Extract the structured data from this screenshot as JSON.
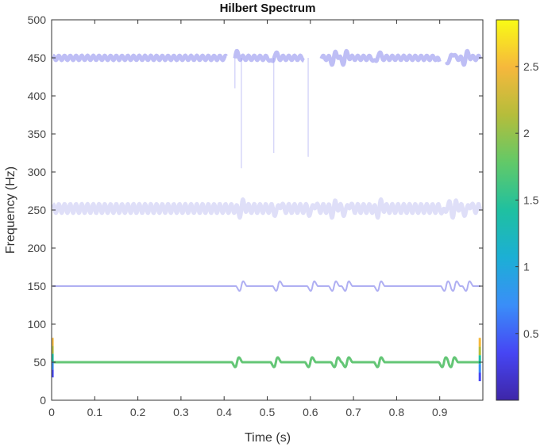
{
  "chart_data": {
    "type": "scatter",
    "title": "Hilbert Spectrum",
    "xlabel": "Time (s)",
    "ylabel": "Frequency (Hz)",
    "xlim": [
      0,
      1
    ],
    "ylim": [
      0,
      500
    ],
    "xticks": [
      0,
      0.1,
      0.2,
      0.3,
      0.4,
      0.5,
      0.6,
      0.7,
      0.8,
      0.9
    ],
    "xtick_labels": [
      "0",
      "0.1",
      "0.2",
      "0.3",
      "0.4",
      "0.5",
      "0.6",
      "0.7",
      "0.8",
      "0.9"
    ],
    "yticks": [
      0,
      50,
      100,
      150,
      200,
      250,
      300,
      350,
      400,
      450,
      500
    ],
    "ytick_labels": [
      "0",
      "50",
      "100",
      "150",
      "200",
      "250",
      "300",
      "350",
      "400",
      "450",
      "500"
    ],
    "grid": false,
    "colorbar": {
      "range": [
        0,
        2.85
      ],
      "ticks": [
        0.5,
        1,
        1.5,
        2,
        2.5
      ],
      "tick_labels": [
        "0.5",
        "1",
        "1.5",
        "2",
        "2.5"
      ],
      "colormap": "parula",
      "stops": [
        "#3e26a8",
        "#4646f4",
        "#3a8ef8",
        "#1cafd5",
        "#1fc0a0",
        "#62c968",
        "#b5bd3b",
        "#f6b83c",
        "#f9fb15"
      ]
    },
    "series": [
      {
        "base_frequency": 450,
        "amplitude": 0.15,
        "color": "#9b9bf0",
        "opacity": 0.65,
        "ripple_hz": 3,
        "events": [
          0.425,
          0.515,
          0.595,
          0.655,
          0.68,
          0.755,
          0.905,
          0.925,
          0.96
        ],
        "gaps": [
          [
            0.405,
            0.425
          ],
          [
            0.585,
            0.625
          ],
          [
            0.9,
            0.915
          ]
        ],
        "spikes": [
          [
            0.425,
            410
          ],
          [
            0.44,
            305
          ],
          [
            0.515,
            325
          ],
          [
            0.595,
            320
          ]
        ]
      },
      {
        "base_frequency": 252,
        "amplitude": 0.08,
        "color": "#c4c4f2",
        "opacity": 0.55,
        "ripple_hz": 6,
        "events": [
          0.44,
          0.525,
          0.605,
          0.655,
          0.685,
          0.76,
          0.915,
          0.935,
          0.965
        ]
      },
      {
        "base_frequency": 150,
        "amplitude": 0.2,
        "color": "#8d8ded",
        "opacity": 0.7,
        "ripple_hz": 0,
        "events": [
          0.44,
          0.525,
          0.605,
          0.655,
          0.685,
          0.76,
          0.915,
          0.935,
          0.965
        ]
      },
      {
        "base_frequency": 50,
        "amplitude": 1.7,
        "color": "#5cc36f",
        "opacity": 0.95,
        "ripple_hz": 0,
        "events": [
          0.43,
          0.52,
          0.6,
          0.66,
          0.685,
          0.76,
          0.91,
          0.93
        ]
      }
    ]
  }
}
